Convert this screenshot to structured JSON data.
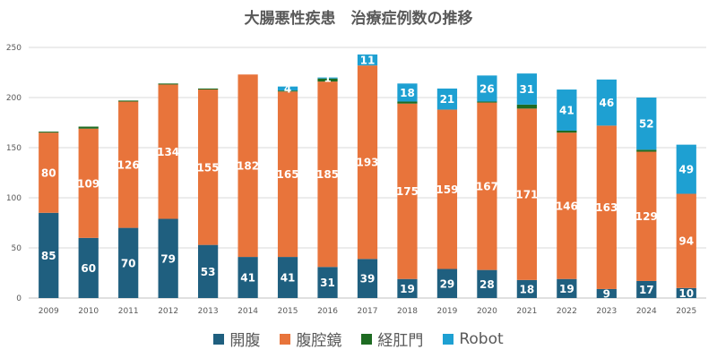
{
  "chart_data": {
    "type": "bar",
    "stacked": true,
    "title": "大腸悪性疾患　治療症例数の推移",
    "xlabel": "",
    "ylabel": "",
    "ylim": [
      0,
      250
    ],
    "yticks": [
      0,
      50,
      100,
      150,
      200,
      250
    ],
    "grid": true,
    "legend_position": "bottom",
    "categories": [
      "2009",
      "2010",
      "2011",
      "2012",
      "2013",
      "2014",
      "2015",
      "2016",
      "2017",
      "2018",
      "2019",
      "2020",
      "2021",
      "2022",
      "2023",
      "2024",
      "2025"
    ],
    "series": [
      {
        "name": "開腹",
        "color": "#1f5f7f",
        "values": [
          85,
          60,
          70,
          79,
          53,
          41,
          41,
          31,
          39,
          19,
          29,
          28,
          18,
          19,
          9,
          17,
          10
        ]
      },
      {
        "name": "腹腔鏡",
        "color": "#e8743b",
        "values": [
          80,
          109,
          126,
          134,
          155,
          182,
          165,
          185,
          193,
          175,
          159,
          167,
          171,
          146,
          163,
          129,
          94
        ]
      },
      {
        "name": "経肛門",
        "color": "#1e6b22",
        "values": [
          1,
          2,
          1,
          1,
          1,
          0,
          1,
          3,
          0,
          2,
          0,
          1,
          4,
          2,
          0,
          2,
          0
        ]
      },
      {
        "name": "Robot",
        "color": "#1ea0d2",
        "values": [
          0,
          0,
          0,
          0,
          0,
          0,
          4,
          1,
          11,
          18,
          21,
          26,
          31,
          41,
          46,
          52,
          49
        ]
      }
    ],
    "data_labels": {
      "開腹": [
        "85",
        "60",
        "70",
        "79",
        "53",
        "41",
        "41",
        "31",
        "39",
        "19",
        "29",
        "28",
        "18",
        "19",
        "9",
        "17",
        "10"
      ],
      "腹腔鏡": [
        "80",
        "109",
        "126",
        "134",
        "155",
        "182",
        "165",
        "185",
        "193",
        "175",
        "159",
        "167",
        "171",
        "146",
        "163",
        "129",
        "94"
      ],
      "経肛門": [],
      "Robot": [
        "",
        "",
        "",
        "",
        "",
        "",
        "4",
        "1",
        "11",
        "18",
        "21",
        "26",
        "31",
        "41",
        "46",
        "52",
        "49"
      ]
    }
  }
}
